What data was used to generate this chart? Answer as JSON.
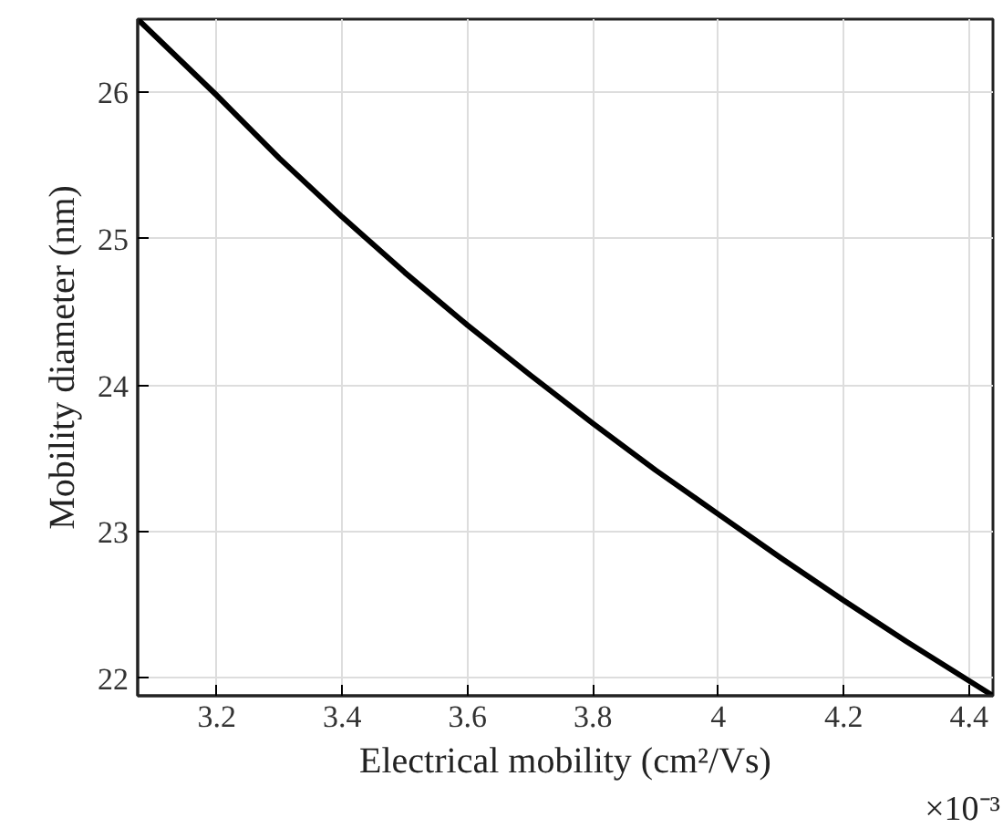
{
  "chart_data": {
    "type": "line",
    "xlabel": "Electrical mobility (cm²/Vs)",
    "ylabel": "Mobility diameter (nm)",
    "annotations": [
      "×10⁻³"
    ],
    "x": [
      3.074,
      3.2,
      3.3,
      3.4,
      3.5,
      3.6,
      3.7,
      3.8,
      3.9,
      4.0,
      4.1,
      4.2,
      4.3,
      4.438
    ],
    "series": [
      {
        "color": "#000000",
        "values": [
          26.5,
          25.98,
          25.55,
          25.15,
          24.77,
          24.41,
          24.07,
          23.74,
          23.42,
          23.12,
          22.82,
          22.53,
          22.25,
          21.88
        ]
      }
    ],
    "xlim": [
      3.074,
      4.438
    ],
    "ylim": [
      21.88,
      26.5
    ],
    "xticks": [
      3.2,
      3.4,
      3.6,
      3.8,
      4,
      4.2,
      4.4
    ],
    "yticks": [
      22,
      23,
      24,
      25,
      26
    ],
    "grid": true,
    "marker": "none",
    "line_style": "solid"
  }
}
